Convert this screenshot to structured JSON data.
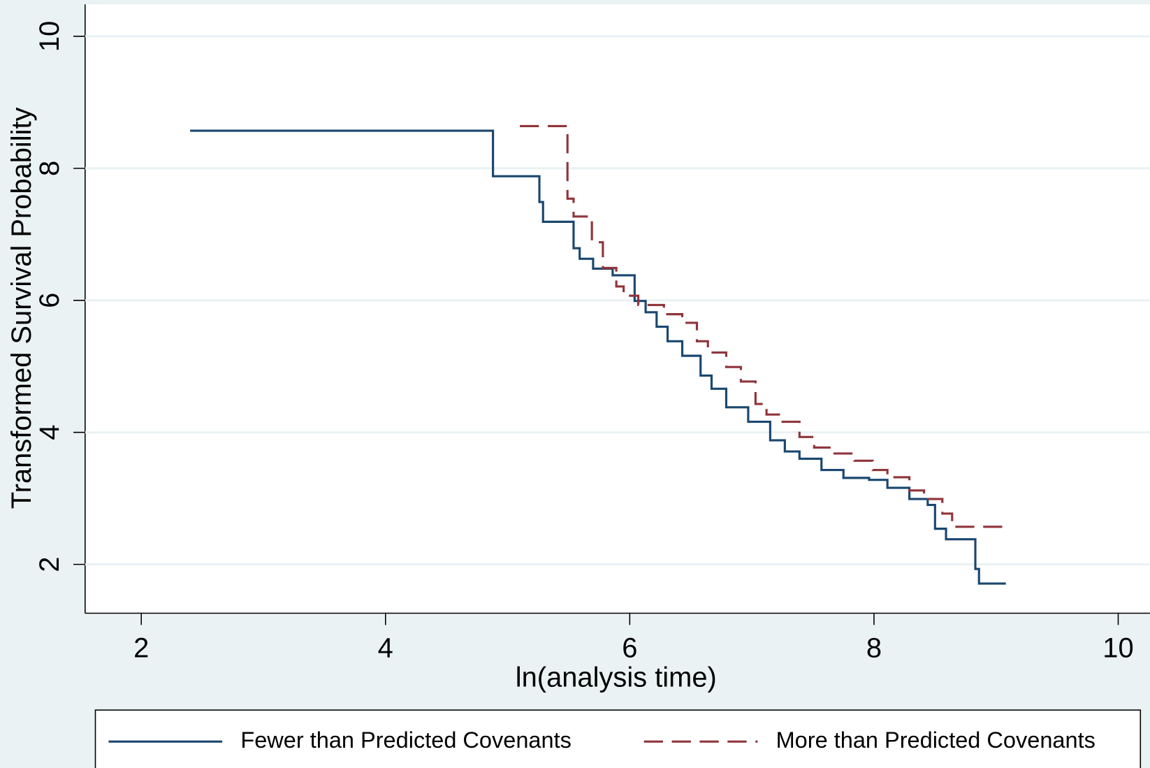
{
  "chart_data": {
    "type": "line",
    "step": true,
    "xlabel": "ln(analysis time)",
    "ylabel": "Transformed Survival Probability",
    "xlim": [
      1.54,
      10.26
    ],
    "ylim": [
      1.26,
      10.55
    ],
    "xticks": [
      2,
      4,
      6,
      8,
      10
    ],
    "yticks": [
      2,
      4,
      6,
      8,
      10
    ],
    "grid": true,
    "legend": "bottom",
    "series": [
      {
        "name": "Fewer than Predicted Covenants",
        "color": "#1a476f",
        "dash": false,
        "x": [
          2.4,
          4.88,
          5.26,
          5.29,
          5.54,
          5.59,
          5.7,
          5.86,
          6.04,
          6.13,
          6.22,
          6.31,
          6.43,
          6.58,
          6.67,
          6.79,
          6.97,
          7.15,
          7.27,
          7.39,
          7.57,
          7.75,
          7.96,
          8.11,
          8.29,
          8.44,
          8.5,
          8.59,
          8.83,
          8.86,
          9.08
        ],
        "values": [
          8.57,
          7.88,
          7.49,
          7.19,
          6.79,
          6.63,
          6.48,
          6.38,
          5.99,
          5.82,
          5.6,
          5.38,
          5.16,
          4.86,
          4.66,
          4.38,
          4.16,
          3.88,
          3.71,
          3.6,
          3.43,
          3.31,
          3.28,
          3.16,
          2.99,
          2.9,
          2.54,
          2.38,
          1.93,
          1.71,
          1.71
        ]
      },
      {
        "name": "More than Predicted Covenants",
        "color": "#90353b",
        "dash": true,
        "x": [
          5.1,
          5.49,
          5.54,
          5.69,
          5.78,
          5.89,
          5.95,
          6.07,
          6.28,
          6.43,
          6.55,
          6.64,
          6.79,
          6.91,
          7.03,
          7.12,
          7.24,
          7.39,
          7.51,
          7.66,
          7.84,
          7.99,
          8.11,
          8.29,
          8.41,
          8.56,
          8.64,
          9.08
        ],
        "values": [
          8.64,
          7.54,
          7.27,
          6.88,
          6.49,
          6.21,
          6.07,
          5.93,
          5.79,
          5.66,
          5.38,
          5.21,
          4.99,
          4.77,
          4.43,
          4.27,
          4.16,
          3.93,
          3.77,
          3.68,
          3.57,
          3.43,
          3.32,
          3.12,
          2.99,
          2.77,
          2.57,
          2.57
        ]
      }
    ]
  }
}
